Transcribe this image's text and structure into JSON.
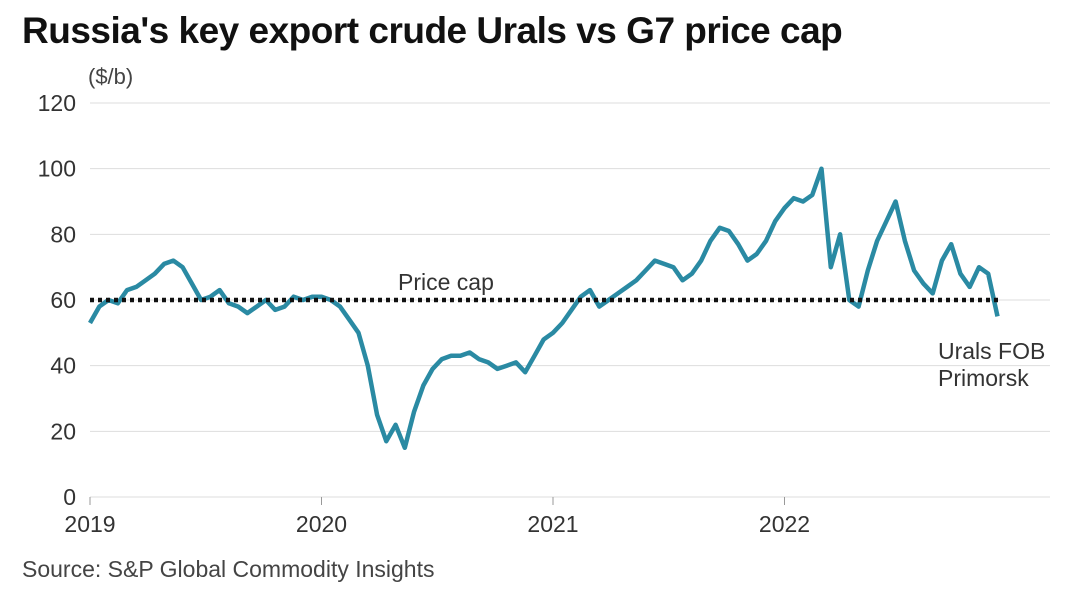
{
  "chart_data": {
    "type": "line",
    "title": "Russia's key export crude Urals vs G7 price cap",
    "y_label": "($/b)",
    "source": "Source: S&P Global Commodity Insights",
    "annotation": {
      "label": "Price cap",
      "value": 60
    },
    "x": [
      2019.0,
      2019.04,
      2019.08,
      2019.12,
      2019.16,
      2019.2,
      2019.24,
      2019.28,
      2019.32,
      2019.36,
      2019.4,
      2019.44,
      2019.48,
      2019.52,
      2019.56,
      2019.6,
      2019.64,
      2019.68,
      2019.72,
      2019.76,
      2019.8,
      2019.84,
      2019.88,
      2019.92,
      2019.96,
      2020.0,
      2020.04,
      2020.08,
      2020.12,
      2020.16,
      2020.2,
      2020.24,
      2020.28,
      2020.32,
      2020.36,
      2020.4,
      2020.44,
      2020.48,
      2020.52,
      2020.56,
      2020.6,
      2020.64,
      2020.68,
      2020.72,
      2020.76,
      2020.8,
      2020.84,
      2020.88,
      2020.92,
      2020.96,
      2021.0,
      2021.04,
      2021.08,
      2021.12,
      2021.16,
      2021.2,
      2021.24,
      2021.28,
      2021.32,
      2021.36,
      2021.4,
      2021.44,
      2021.48,
      2021.52,
      2021.56,
      2021.6,
      2021.64,
      2021.68,
      2021.72,
      2021.76,
      2021.8,
      2021.84,
      2021.88,
      2021.92,
      2021.96,
      2022.0,
      2022.04,
      2022.08,
      2022.12,
      2022.16,
      2022.2,
      2022.24,
      2022.28,
      2022.32,
      2022.36,
      2022.4,
      2022.44,
      2022.48,
      2022.52,
      2022.56,
      2022.6,
      2022.64,
      2022.68,
      2022.72,
      2022.76,
      2022.8,
      2022.84,
      2022.88,
      2022.92
    ],
    "series": [
      {
        "name": "Urals FOB Primorsk",
        "color": "#2a8aa3",
        "values": [
          53,
          58,
          60,
          59,
          63,
          64,
          66,
          68,
          71,
          72,
          70,
          65,
          60,
          61,
          63,
          59,
          58,
          56,
          58,
          60,
          57,
          58,
          61,
          60,
          61,
          61,
          60,
          58,
          54,
          50,
          40,
          25,
          17,
          22,
          15,
          26,
          34,
          39,
          42,
          43,
          43,
          44,
          42,
          41,
          39,
          40,
          41,
          38,
          43,
          48,
          50,
          53,
          57,
          61,
          63,
          58,
          60,
          62,
          64,
          66,
          69,
          72,
          71,
          70,
          66,
          68,
          72,
          78,
          82,
          81,
          77,
          72,
          74,
          78,
          84,
          88,
          91,
          90,
          92,
          100,
          70,
          80,
          60,
          58,
          69,
          78,
          84,
          90,
          78,
          69,
          65,
          62,
          72,
          77,
          68,
          64,
          70,
          68,
          55
        ]
      }
    ],
    "xlim": [
      2019,
      2023
    ],
    "xticks": [
      2019,
      2020,
      2021,
      2022
    ],
    "ylim": [
      0,
      120
    ],
    "yticks": [
      0,
      20,
      40,
      60,
      80,
      100,
      120
    ],
    "grid": true
  }
}
